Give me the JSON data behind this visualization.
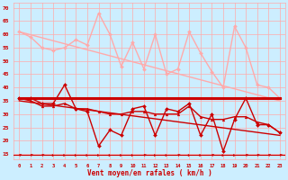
{
  "xlabel": "Vent moyen/en rafales ( km/h )",
  "bg_color": "#cceeff",
  "grid_color": "#ffaaaa",
  "text_color": "#cc0000",
  "xlim": [
    -0.5,
    23.5
  ],
  "ylim": [
    13,
    72
  ],
  "yticks": [
    15,
    20,
    25,
    30,
    35,
    40,
    45,
    50,
    55,
    60,
    65,
    70
  ],
  "xticks": [
    0,
    1,
    2,
    3,
    4,
    5,
    6,
    7,
    8,
    9,
    10,
    11,
    12,
    13,
    14,
    15,
    16,
    17,
    18,
    19,
    20,
    21,
    22,
    23
  ],
  "series": [
    {
      "name": "rafales_light",
      "x": [
        0,
        1,
        2,
        3,
        4,
        5,
        6,
        7,
        8,
        9,
        10,
        11,
        12,
        13,
        14,
        15,
        16,
        17,
        18,
        19,
        20,
        21,
        22,
        23
      ],
      "y": [
        61,
        59,
        55,
        54,
        55,
        58,
        56,
        68,
        60,
        48,
        57,
        47,
        60,
        45,
        47,
        61,
        53,
        46,
        40,
        63,
        55,
        41,
        40,
        36
      ],
      "color": "#ffaaaa",
      "lw": 1.0,
      "marker": "D",
      "ms": 2.0
    },
    {
      "name": "moyen_light_trend",
      "x": [
        0,
        23
      ],
      "y": [
        61,
        35
      ],
      "color": "#ffaaaa",
      "lw": 1.0,
      "marker": null,
      "ms": 0
    },
    {
      "name": "flat_36_light",
      "x": [
        0,
        23
      ],
      "y": [
        36,
        36
      ],
      "color": "#ffaaaa",
      "lw": 1.0,
      "marker": null,
      "ms": 0
    },
    {
      "name": "flat_36_dark_bold",
      "x": [
        0,
        23
      ],
      "y": [
        36,
        36
      ],
      "color": "#cc0000",
      "lw": 2.2,
      "marker": null,
      "ms": 0
    },
    {
      "name": "moyen_dark_zigzag",
      "x": [
        0,
        1,
        2,
        3,
        4,
        5,
        6,
        7,
        8,
        9,
        10,
        11,
        12,
        13,
        14,
        15,
        16,
        17,
        18,
        19,
        20,
        21,
        22,
        23
      ],
      "y": [
        36,
        36,
        34,
        34,
        41,
        32,
        31,
        18,
        24,
        22,
        32,
        33,
        22,
        32,
        31,
        34,
        22,
        30,
        16,
        28,
        36,
        26,
        26,
        23
      ],
      "color": "#cc0000",
      "lw": 1.0,
      "marker": "D",
      "ms": 2.0
    },
    {
      "name": "trend_dark",
      "x": [
        0,
        23
      ],
      "y": [
        35,
        22
      ],
      "color": "#cc0000",
      "lw": 1.0,
      "marker": null,
      "ms": 0
    },
    {
      "name": "moyen_dark_smooth",
      "x": [
        0,
        1,
        2,
        3,
        4,
        5,
        6,
        7,
        8,
        9,
        10,
        11,
        12,
        13,
        14,
        15,
        16,
        17,
        18,
        19,
        20,
        21,
        22,
        23
      ],
      "y": [
        36,
        35,
        33,
        33,
        34,
        32,
        32,
        31,
        30,
        30,
        31,
        31,
        30,
        30,
        30,
        33,
        29,
        28,
        28,
        29,
        29,
        27,
        26,
        23
      ],
      "color": "#cc0000",
      "lw": 1.0,
      "marker": "^",
      "ms": 2.0
    }
  ],
  "wind_dirs": [
    45,
    45,
    45,
    0,
    0,
    0,
    0,
    0,
    0,
    0,
    0,
    45,
    0,
    0,
    45,
    0,
    0,
    45,
    0,
    0,
    45,
    45,
    45,
    45
  ]
}
